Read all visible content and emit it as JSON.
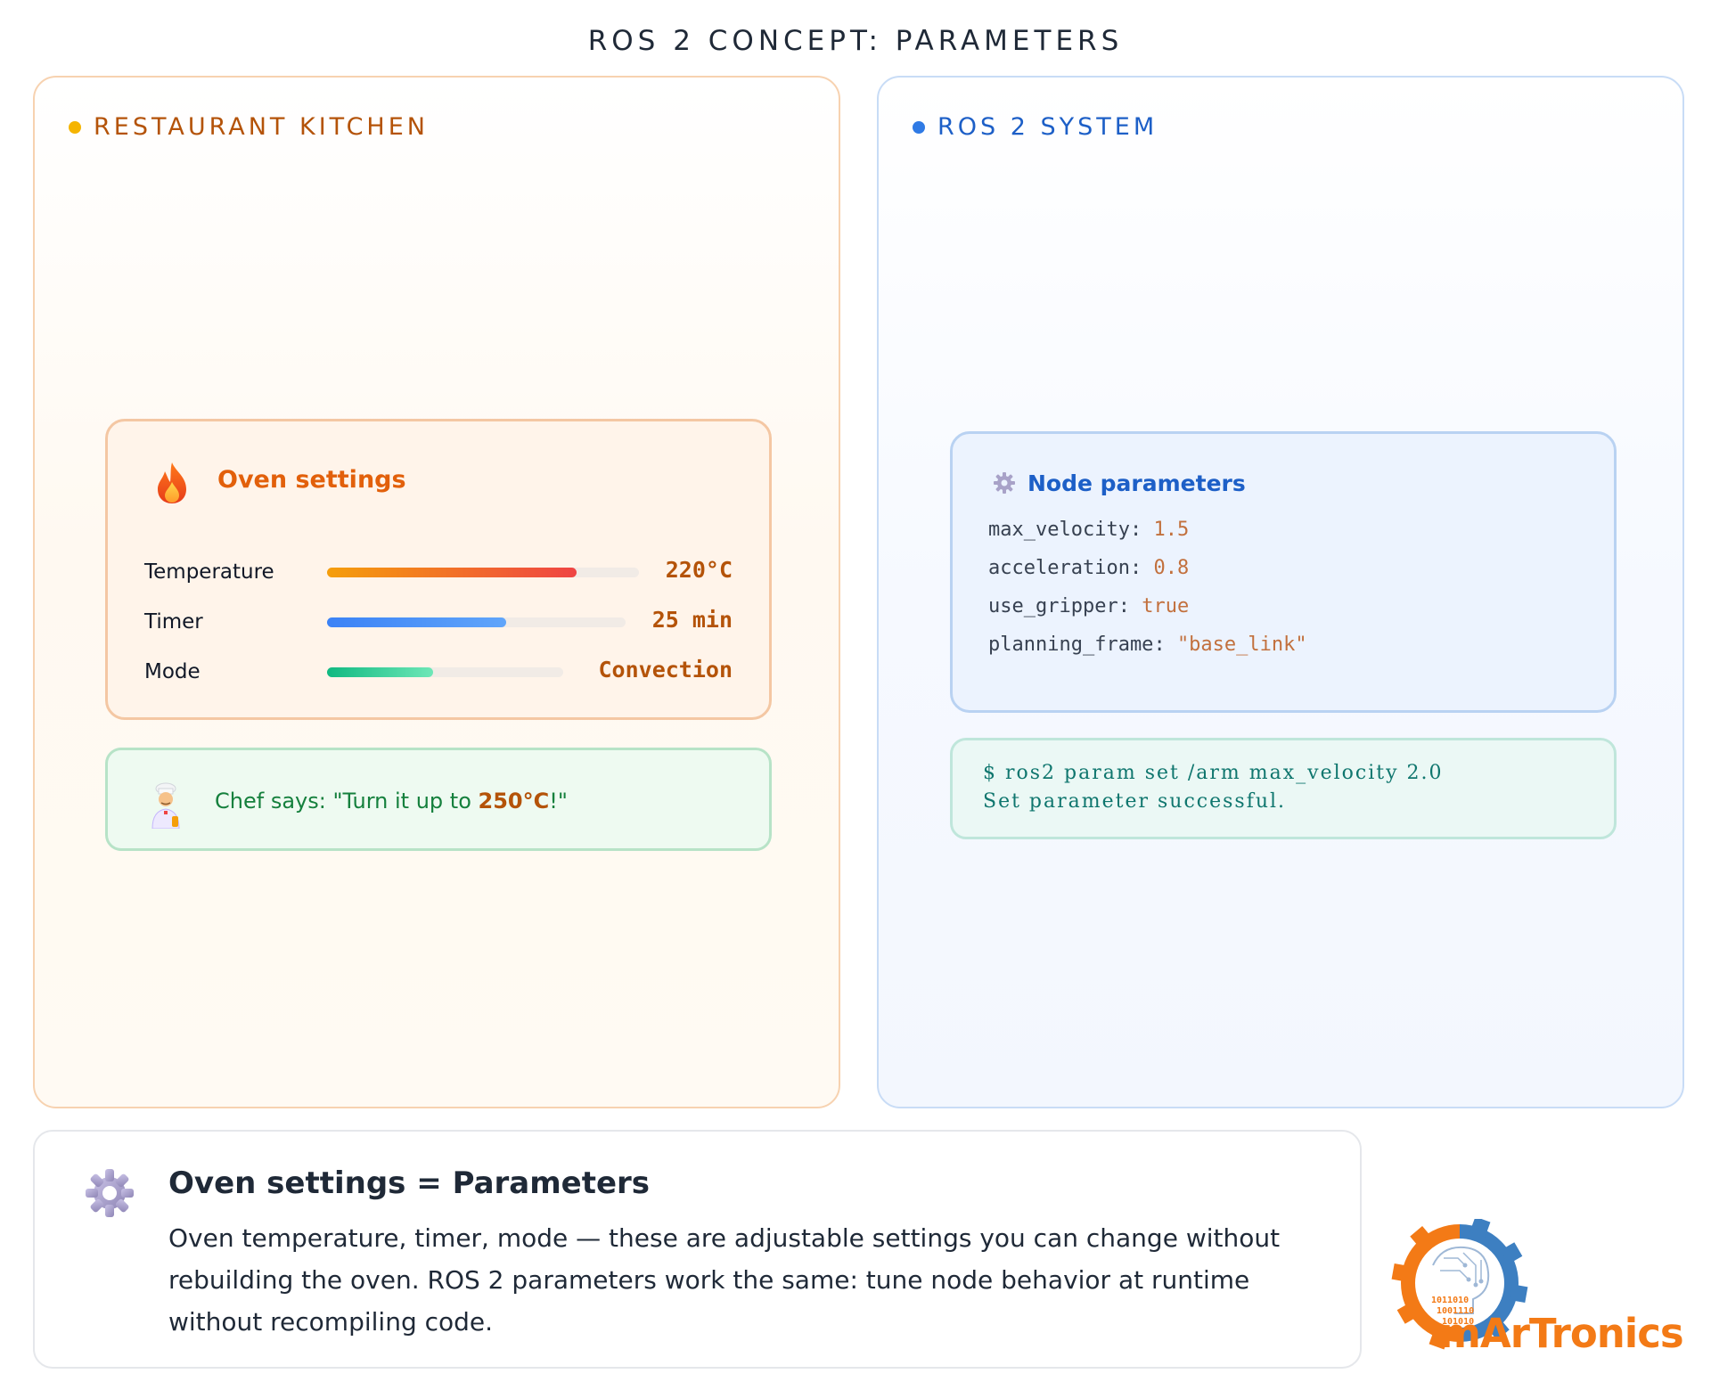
{
  "page": {
    "title": "ROS 2 CONCEPT: PARAMETERS"
  },
  "kitchen": {
    "header": "RESTAURANT KITCHEN",
    "oven": {
      "title": "Oven settings",
      "icon": "flame-icon",
      "settings": [
        {
          "label": "Temperature",
          "value": "220°C",
          "level": 0.8,
          "colors": [
            "#f59e0b",
            "#ef4444"
          ]
        },
        {
          "label": "Timer",
          "value": "25 min",
          "level": 0.6,
          "colors": [
            "#3b82f6",
            "#60a5fa"
          ]
        },
        {
          "label": "Mode",
          "value": "Convection",
          "level": 0.45,
          "colors": [
            "#10b981",
            "#6ee7b7"
          ]
        }
      ]
    },
    "chef": {
      "icon": "chef-icon",
      "text_before": "Chef says: \"Turn it up to ",
      "highlight": "250°C",
      "text_after": "!\""
    }
  },
  "ros": {
    "header": "ROS 2 SYSTEM",
    "params": {
      "title": "Node parameters",
      "icon": "gear-icon",
      "lines": [
        {
          "key": "max_velocity",
          "value": "1.5"
        },
        {
          "key": "acceleration",
          "value": "0.8"
        },
        {
          "key": "use_gripper",
          "value": "true"
        },
        {
          "key": "planning_frame",
          "value": "\"base_link\""
        }
      ]
    },
    "terminal": {
      "command": "$ ros2 param set /arm max_velocity 2.0",
      "output": "Set parameter successful."
    }
  },
  "summary": {
    "icon": "gear-icon",
    "title": "Oven settings = Parameters",
    "body": "Oven temperature, timer, mode — these are adjustable settings you can change without rebuilding the oven. ROS 2 parameters work the same: tune node behavior at runtime without recompiling code."
  },
  "logo": {
    "text": "mArTronics",
    "binary": [
      "1011010",
      "1001110",
      "101010"
    ],
    "colors": {
      "gear": "#3d7fc1",
      "text": "#f37a16"
    }
  }
}
